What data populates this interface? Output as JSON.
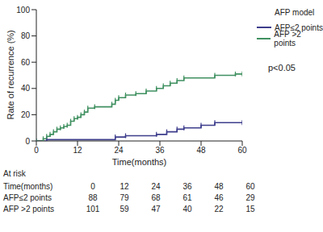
{
  "chart_data": {
    "type": "line",
    "x_label": "Time(months)",
    "y_label": "Rate of recurrence (%)",
    "legend_title": "AFP model",
    "legend": "upper right",
    "annotation": "p<0.05",
    "xlim": [
      0,
      60
    ],
    "xticks": [
      0,
      12,
      24,
      36,
      48,
      60
    ],
    "ylim": [
      0,
      100
    ],
    "yticks": [
      0,
      20,
      40,
      60,
      80,
      100
    ],
    "grid": false,
    "line_style": "step",
    "marker": "|",
    "series": [
      {
        "name": "AFP≤2 points",
        "color": "#3d3d8c",
        "x": [
          0,
          3,
          23,
          26,
          35,
          38,
          41,
          43,
          48,
          52,
          60
        ],
        "values": [
          0,
          1,
          3,
          4,
          5,
          7,
          9,
          10,
          12,
          14,
          14
        ]
      },
      {
        "name": "AFP >2 points",
        "color": "#3f9060",
        "x": [
          0,
          2,
          3,
          4,
          5,
          6,
          7,
          8,
          9,
          10,
          11,
          12,
          13,
          14,
          15,
          17,
          22,
          23,
          24,
          26,
          29,
          32,
          35,
          37,
          39,
          41,
          43,
          52,
          58,
          60
        ],
        "values": [
          0,
          1.7,
          3.5,
          5,
          7,
          9,
          10,
          11,
          12,
          15,
          17,
          18,
          20,
          22,
          25,
          26,
          28,
          31,
          33,
          35,
          36,
          38,
          40,
          42,
          44,
          46,
          48,
          50,
          51,
          51
        ]
      }
    ],
    "at_risk": {
      "title": "At risk",
      "header": "Time(months)",
      "times": [
        0,
        12,
        24,
        36,
        48,
        60
      ],
      "rows": [
        {
          "label": "AFP≤2 points",
          "values": [
            88,
            79,
            68,
            61,
            46,
            29
          ]
        },
        {
          "label": "AFP >2 points",
          "values": [
            101,
            59,
            47,
            40,
            22,
            15
          ]
        }
      ]
    }
  }
}
